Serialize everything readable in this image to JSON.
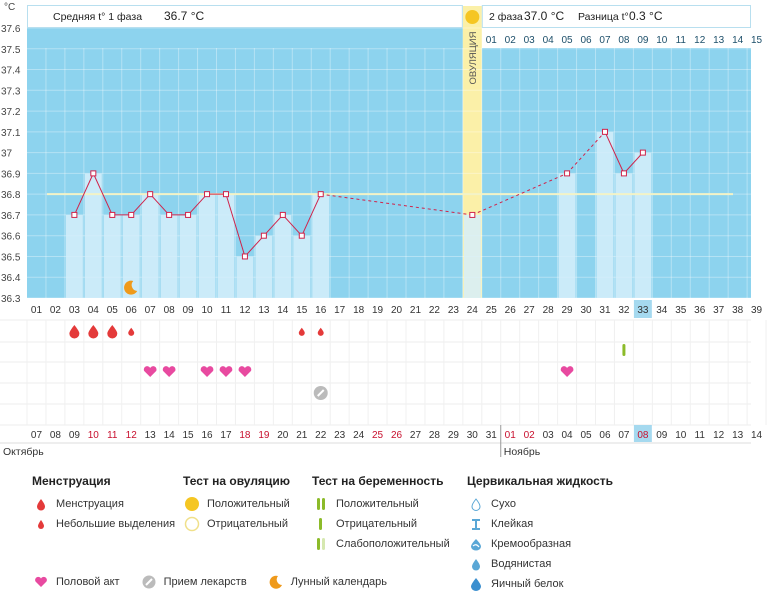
{
  "header": {
    "unit": "°C",
    "phase1_label": "Средняя t° 1 фаза",
    "phase1_value": "36.7 °C",
    "phase2_label": "2 фаза",
    "phase2_value": "37.0 °C",
    "diff_label": "Разница t°",
    "diff_value": "0.3 °C",
    "ovulation_label": "ОВУЛЯЦИЯ"
  },
  "chart_data": {
    "type": "bar",
    "y_ticks": [
      "37.6",
      "37.5",
      "37.4",
      "37.3",
      "37.2",
      "37.1",
      "37",
      "36.9",
      "36.8",
      "36.7",
      "36.6",
      "36.5",
      "36.4",
      "36.3"
    ],
    "ylim": [
      36.3,
      37.6
    ],
    "cycle_days": [
      "01",
      "02",
      "03",
      "04",
      "05",
      "06",
      "07",
      "08",
      "09",
      "10",
      "11",
      "12",
      "13",
      "14",
      "15",
      "16",
      "17",
      "18",
      "19",
      "20",
      "21",
      "22",
      "23",
      "24",
      "25",
      "26",
      "27",
      "28",
      "29",
      "30",
      "31",
      "32",
      "33",
      "34",
      "35",
      "36",
      "37",
      "38",
      "39"
    ],
    "phase2_days": [
      "01",
      "02",
      "03",
      "04",
      "05",
      "06",
      "07",
      "08",
      "09",
      "10",
      "11",
      "12",
      "13",
      "14",
      "15"
    ],
    "temperatures": [
      {
        "day": 3,
        "value": 36.7
      },
      {
        "day": 4,
        "value": 36.9
      },
      {
        "day": 5,
        "value": 36.7
      },
      {
        "day": 6,
        "value": 36.7
      },
      {
        "day": 7,
        "value": 36.8
      },
      {
        "day": 8,
        "value": 36.7
      },
      {
        "day": 9,
        "value": 36.7
      },
      {
        "day": 10,
        "value": 36.8
      },
      {
        "day": 11,
        "value": 36.8
      },
      {
        "day": 12,
        "value": 36.5
      },
      {
        "day": 13,
        "value": 36.6
      },
      {
        "day": 14,
        "value": 36.7
      },
      {
        "day": 15,
        "value": 36.6
      },
      {
        "day": 16,
        "value": 36.8
      },
      {
        "day": 24,
        "value": 36.7
      },
      {
        "day": 29,
        "value": 36.9
      },
      {
        "day": 31,
        "value": 37.1
      },
      {
        "day": 32,
        "value": 36.9
      },
      {
        "day": 33,
        "value": 37.0
      }
    ],
    "coverline": 36.8,
    "ovulation_day": 24,
    "current_day": 33,
    "calendar_dates": [
      "07",
      "08",
      "09",
      "10",
      "11",
      "12",
      "13",
      "14",
      "15",
      "16",
      "17",
      "18",
      "19",
      "20",
      "21",
      "22",
      "23",
      "24",
      "25",
      "26",
      "27",
      "28",
      "29",
      "30",
      "31",
      "01",
      "02",
      "03",
      "04",
      "05",
      "06",
      "07",
      "08",
      "09",
      "10",
      "11",
      "12",
      "13",
      "14"
    ],
    "red_date_indices": [
      3,
      4,
      5,
      11,
      12,
      18,
      19,
      25,
      26,
      32
    ],
    "months": [
      "Октябрь",
      "Ноябрь"
    ],
    "menstruation": [
      {
        "day": 3,
        "size": "big"
      },
      {
        "day": 4,
        "size": "big"
      },
      {
        "day": 5,
        "size": "big"
      },
      {
        "day": 6,
        "size": "small"
      }
    ],
    "spotting": [
      {
        "day": 15
      },
      {
        "day": 16
      }
    ],
    "pregnancy_test": [
      {
        "day": 32,
        "result": "negative"
      }
    ],
    "intercourse": [
      7,
      8,
      10,
      11,
      12,
      29
    ],
    "medication": [
      16
    ],
    "moon": [
      6
    ]
  },
  "legend": {
    "menstruation": {
      "title": "Менструация",
      "items": [
        "Менструация",
        "Небольшие выделения"
      ]
    },
    "ovulation_test": {
      "title": "Тест на овуляцию",
      "items": [
        "Положительный",
        "Отрицательный"
      ]
    },
    "pregnancy_test": {
      "title": "Тест на беременность",
      "items": [
        "Положительный",
        "Отрицательный",
        "Слабоположительный"
      ]
    },
    "cervical": {
      "title": "Цервикальная жидкость",
      "items": [
        "Сухо",
        "Клейкая",
        "Кремообразная",
        "Водянистая",
        "Яичный белок"
      ]
    },
    "bottom": [
      "Половой акт",
      "Прием лекарств",
      "Лунный календарь"
    ]
  },
  "colors": {
    "sky": "#8dd3ee",
    "bar": "#d6eefa",
    "ovulation": "#fbf0a8",
    "line": "#d0234a",
    "pink": "#e84aa0",
    "red": "#e43a3a",
    "green": "#8cbb2a",
    "orange": "#ef9a1b"
  }
}
